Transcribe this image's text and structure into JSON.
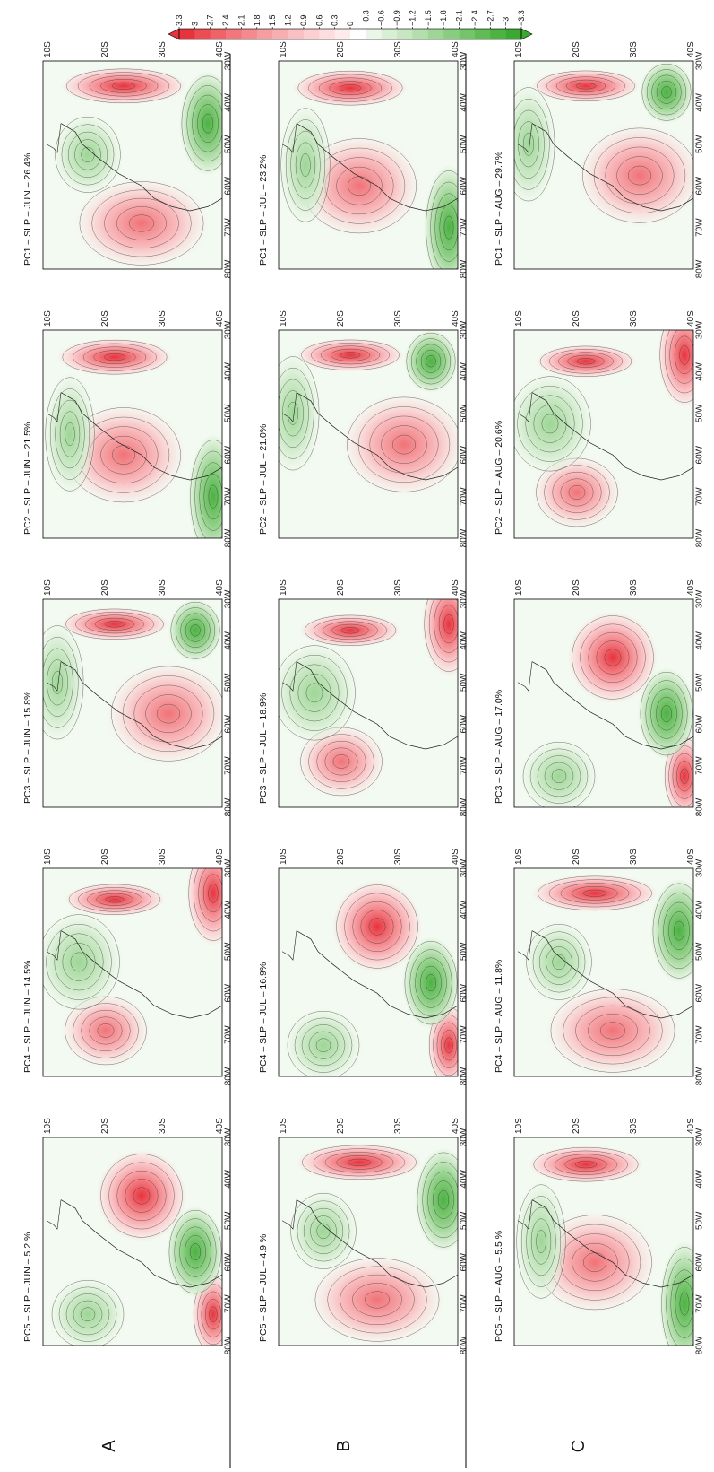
{
  "figure": {
    "row_labels": [
      "A",
      "B",
      "C"
    ],
    "lon_ticks": [
      "80W",
      "70W",
      "60W",
      "50W",
      "40W",
      "30W"
    ],
    "lat_ticks": [
      "10S",
      "20S",
      "30S",
      "40S"
    ],
    "rows": [
      {
        "label": "A",
        "panels": [
          {
            "title": "PC1 – SLP – JUN – 26.4%"
          },
          {
            "title": "PC2 – SLP – JUN – 21.5%"
          },
          {
            "title": "PC3 – SLP – JUN – 15.8%"
          },
          {
            "title": "PC4 – SLP – JUN – 14.5%"
          },
          {
            "title": "PC5 – SLP – JUN – 5.2 %"
          }
        ]
      },
      {
        "label": "B",
        "panels": [
          {
            "title": "PC1 – SLP – JUL – 23.2%"
          },
          {
            "title": "PC2 – SLP – JUL – 21.0%"
          },
          {
            "title": "PC3 – SLP – JUL – 18.9%"
          },
          {
            "title": "PC4 – SLP – JUL – 16.9%"
          },
          {
            "title": "PC5 – SLP – JUL – 4.9 %"
          }
        ]
      },
      {
        "label": "C",
        "panels": [
          {
            "title": "PC1 – SLP – AUG – 29.7%"
          },
          {
            "title": "PC2 – SLP – AUG – 20.6%"
          },
          {
            "title": "PC3 – SLP – AUG – 17.0%"
          },
          {
            "title": "PC4 – SLP – AUG – 11.8%"
          },
          {
            "title": "PC5 – SLP – AUG – 5.5 %"
          }
        ]
      }
    ]
  },
  "colorbar": {
    "labels": [
      "3.3",
      "3",
      "2.7",
      "2.4",
      "2.1",
      "1.8",
      "1.5",
      "1.2",
      "0.9",
      "0.6",
      "0.3",
      "0",
      "−0.3",
      "−0.6",
      "−0.9",
      "−1.2",
      "−1.5",
      "−1.8",
      "−2.1",
      "−2.4",
      "−2.7",
      "−3",
      "−3.3"
    ],
    "colors": [
      "#e8333d",
      "#ec4c53",
      "#ef6268",
      "#f2767c",
      "#f48a8e",
      "#f69da0",
      "#f8aeb1",
      "#fabfc1",
      "#fccfd0",
      "#fddddd",
      "#feebeb",
      "#ffffff",
      "#eaf6e8",
      "#d8efd4",
      "#c6e7c0",
      "#b2dfab",
      "#9ed696",
      "#89cd80",
      "#74c46a",
      "#60bb55",
      "#4cb242",
      "#3aa931"
    ]
  }
}
